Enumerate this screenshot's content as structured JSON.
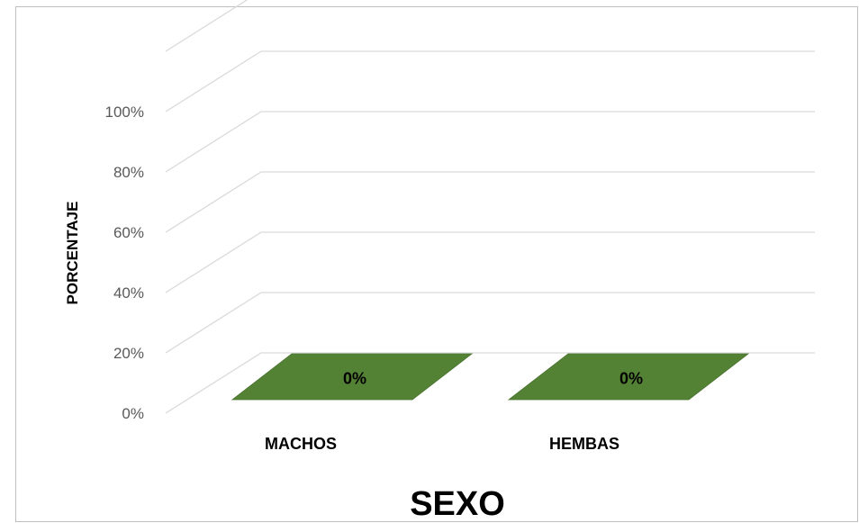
{
  "chart_data": {
    "type": "bar",
    "style": "3d-bar",
    "categories": [
      "MACHOS",
      "HEMBAS"
    ],
    "values": [
      0,
      0
    ],
    "data_labels": [
      "0%",
      "0%"
    ],
    "y_ticks": [
      "0%",
      "20%",
      "40%",
      "60%",
      "80%",
      "100%"
    ],
    "ylim": [
      0,
      100
    ],
    "ylabel": "PORCENTAJE",
    "xlabel": "SEXO",
    "grid": true,
    "legend": "none",
    "colors": {
      "bar": "#548235",
      "grid": "#d9d9d9",
      "tick_text": "#595959",
      "frame": "#bfbfbf"
    }
  }
}
